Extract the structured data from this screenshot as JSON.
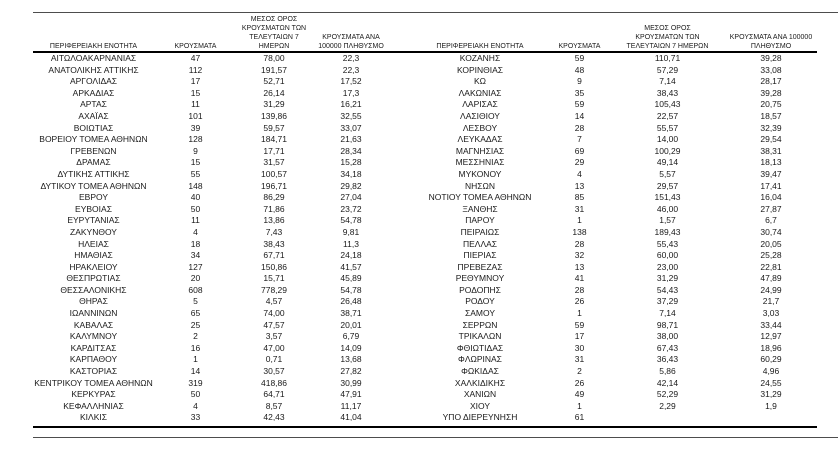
{
  "headers": {
    "region": "ΠΕΡΙΦΕΡΕΙΑΚΗ ΕΝΟΤΗΤΑ",
    "cases": "ΚΡΟΥΣΜΑΤΑ",
    "avg7": "ΜΕΣΟΣ ΟΡΟΣ ΚΡΟΥΣΜΑΤΩΝ ΤΩΝ ΤΕΛΕΥΤΑΙΩΝ 7 ΗΜΕΡΩΝ",
    "per100k": "ΚΡΟΥΣΜΑΤΑ ΑΝΑ 100000 ΠΛΗΘΥΣΜΟ"
  },
  "left_table": {
    "rows": [
      [
        "ΑΙΤΩΛΟΑΚΑΡΝΑΝΙΑΣ",
        "47",
        "78,00",
        "22,3"
      ],
      [
        "ΑΝΑΤΟΛΙΚΗΣ ΑΤΤΙΚΗΣ",
        "112",
        "191,57",
        "22,3"
      ],
      [
        "ΑΡΓΟΛΙΔΑΣ",
        "17",
        "52,71",
        "17,52"
      ],
      [
        "ΑΡΚΑΔΙΑΣ",
        "15",
        "26,14",
        "17,3"
      ],
      [
        "ΑΡΤΑΣ",
        "11",
        "31,29",
        "16,21"
      ],
      [
        "ΑΧΑΪΑΣ",
        "101",
        "139,86",
        "32,55"
      ],
      [
        "ΒΟΙΩΤΙΑΣ",
        "39",
        "59,57",
        "33,07"
      ],
      [
        "ΒΟΡΕΙΟΥ ΤΟΜΕΑ ΑΘΗΝΩΝ",
        "128",
        "184,71",
        "21,63"
      ],
      [
        "ΓΡΕΒΕΝΩΝ",
        "9",
        "17,71",
        "28,34"
      ],
      [
        "ΔΡΑΜΑΣ",
        "15",
        "31,57",
        "15,28"
      ],
      [
        "ΔΥΤΙΚΗΣ ΑΤΤΙΚΗΣ",
        "55",
        "100,57",
        "34,18"
      ],
      [
        "ΔΥΤΙΚΟΥ ΤΟΜΕΑ ΑΘΗΝΩΝ",
        "148",
        "196,71",
        "29,82"
      ],
      [
        "ΕΒΡΟΥ",
        "40",
        "86,29",
        "27,04"
      ],
      [
        "ΕΥΒΟΙΑΣ",
        "50",
        "71,86",
        "23,72"
      ],
      [
        "ΕΥΡΥΤΑΝΙΑΣ",
        "11",
        "13,86",
        "54,78"
      ],
      [
        "ΖΑΚΥΝΘΟΥ",
        "4",
        "7,43",
        "9,81"
      ],
      [
        "ΗΛΕΙΑΣ",
        "18",
        "38,43",
        "11,3"
      ],
      [
        "ΗΜΑΘΙΑΣ",
        "34",
        "67,71",
        "24,18"
      ],
      [
        "ΗΡΑΚΛΕΙΟΥ",
        "127",
        "150,86",
        "41,57"
      ],
      [
        "ΘΕΣΠΡΩΤΙΑΣ",
        "20",
        "15,71",
        "45,89"
      ],
      [
        "ΘΕΣΣΑΛΟΝΙΚΗΣ",
        "608",
        "778,29",
        "54,78"
      ],
      [
        "ΘΗΡΑΣ",
        "5",
        "4,57",
        "26,48"
      ],
      [
        "ΙΩΑΝΝΙΝΩΝ",
        "65",
        "74,00",
        "38,71"
      ],
      [
        "ΚΑΒΑΛΑΣ",
        "25",
        "47,57",
        "20,01"
      ],
      [
        "ΚΑΛΥΜΝΟΥ",
        "2",
        "3,57",
        "6,79"
      ],
      [
        "ΚΑΡΔΙΤΣΑΣ",
        "16",
        "47,00",
        "14,09"
      ],
      [
        "ΚΑΡΠΑΘΟΥ",
        "1",
        "0,71",
        "13,68"
      ],
      [
        "ΚΑΣΤΟΡΙΑΣ",
        "14",
        "30,57",
        "27,82"
      ],
      [
        "ΚΕΝΤΡΙΚΟΥ ΤΟΜΕΑ ΑΘΗΝΩΝ",
        "319",
        "418,86",
        "30,99"
      ],
      [
        "ΚΕΡΚΥΡΑΣ",
        "50",
        "64,71",
        "47,91"
      ],
      [
        "ΚΕΦΑΛΛΗΝΙΑΣ",
        "4",
        "8,57",
        "11,17"
      ],
      [
        "ΚΙΛΚΙΣ",
        "33",
        "42,43",
        "41,04"
      ]
    ]
  },
  "right_table": {
    "rows": [
      [
        "ΚΟΖΑΝΗΣ",
        "59",
        "110,71",
        "39,28"
      ],
      [
        "ΚΟΡΙΝΘΙΑΣ",
        "48",
        "57,29",
        "33,08"
      ],
      [
        "ΚΩ",
        "9",
        "7,14",
        "28,17"
      ],
      [
        "ΛΑΚΩΝΙΑΣ",
        "35",
        "38,43",
        "39,28"
      ],
      [
        "ΛΑΡΙΣΑΣ",
        "59",
        "105,43",
        "20,75"
      ],
      [
        "ΛΑΣΙΘΙΟΥ",
        "14",
        "22,57",
        "18,57"
      ],
      [
        "ΛΕΣΒΟΥ",
        "28",
        "55,57",
        "32,39"
      ],
      [
        "ΛΕΥΚΑΔΑΣ",
        "7",
        "14,00",
        "29,54"
      ],
      [
        "ΜΑΓΝΗΣΙΑΣ",
        "69",
        "100,29",
        "38,31"
      ],
      [
        "ΜΕΣΣΗΝΙΑΣ",
        "29",
        "49,14",
        "18,13"
      ],
      [
        "ΜΥΚΟΝΟΥ",
        "4",
        "5,57",
        "39,47"
      ],
      [
        "ΝΗΣΩΝ",
        "13",
        "29,57",
        "17,41"
      ],
      [
        "ΝΟΤΙΟΥ ΤΟΜΕΑ ΑΘΗΝΩΝ",
        "85",
        "151,43",
        "16,04"
      ],
      [
        "ΞΑΝΘΗΣ",
        "31",
        "46,00",
        "27,87"
      ],
      [
        "ΠΑΡΟΥ",
        "1",
        "1,57",
        "6,7"
      ],
      [
        "ΠΕΙΡΑΙΩΣ",
        "138",
        "189,43",
        "30,74"
      ],
      [
        "ΠΕΛΛΑΣ",
        "28",
        "55,43",
        "20,05"
      ],
      [
        "ΠΙΕΡΙΑΣ",
        "32",
        "60,00",
        "25,28"
      ],
      [
        "ΠΡΕΒΕΖΑΣ",
        "13",
        "23,00",
        "22,81"
      ],
      [
        "ΡΕΘΥΜΝΟΥ",
        "41",
        "31,29",
        "47,89"
      ],
      [
        "ΡΟΔΟΠΗΣ",
        "28",
        "54,43",
        "24,99"
      ],
      [
        "ΡΟΔΟΥ",
        "26",
        "37,29",
        "21,7"
      ],
      [
        "ΣΑΜΟΥ",
        "1",
        "7,14",
        "3,03"
      ],
      [
        "ΣΕΡΡΩΝ",
        "59",
        "98,71",
        "33,44"
      ],
      [
        "ΤΡΙΚΑΛΩΝ",
        "17",
        "38,00",
        "12,97"
      ],
      [
        "ΦΘΙΩΤΙΔΑΣ",
        "30",
        "67,43",
        "18,96"
      ],
      [
        "ΦΛΩΡΙΝΑΣ",
        "31",
        "36,43",
        "60,29"
      ],
      [
        "ΦΩΚΙΔΑΣ",
        "2",
        "5,86",
        "4,96"
      ],
      [
        "ΧΑΛΚΙΔΙΚΗΣ",
        "26",
        "42,14",
        "24,55"
      ],
      [
        "ΧΑΝΙΩΝ",
        "49",
        "52,29",
        "31,29"
      ],
      [
        "ΧΙΟΥ",
        "1",
        "2,29",
        "1,9"
      ],
      [
        "ΥΠΟ ΔΙΕΡΕΥΝΗΣΗ",
        "61",
        "",
        ""
      ]
    ]
  }
}
